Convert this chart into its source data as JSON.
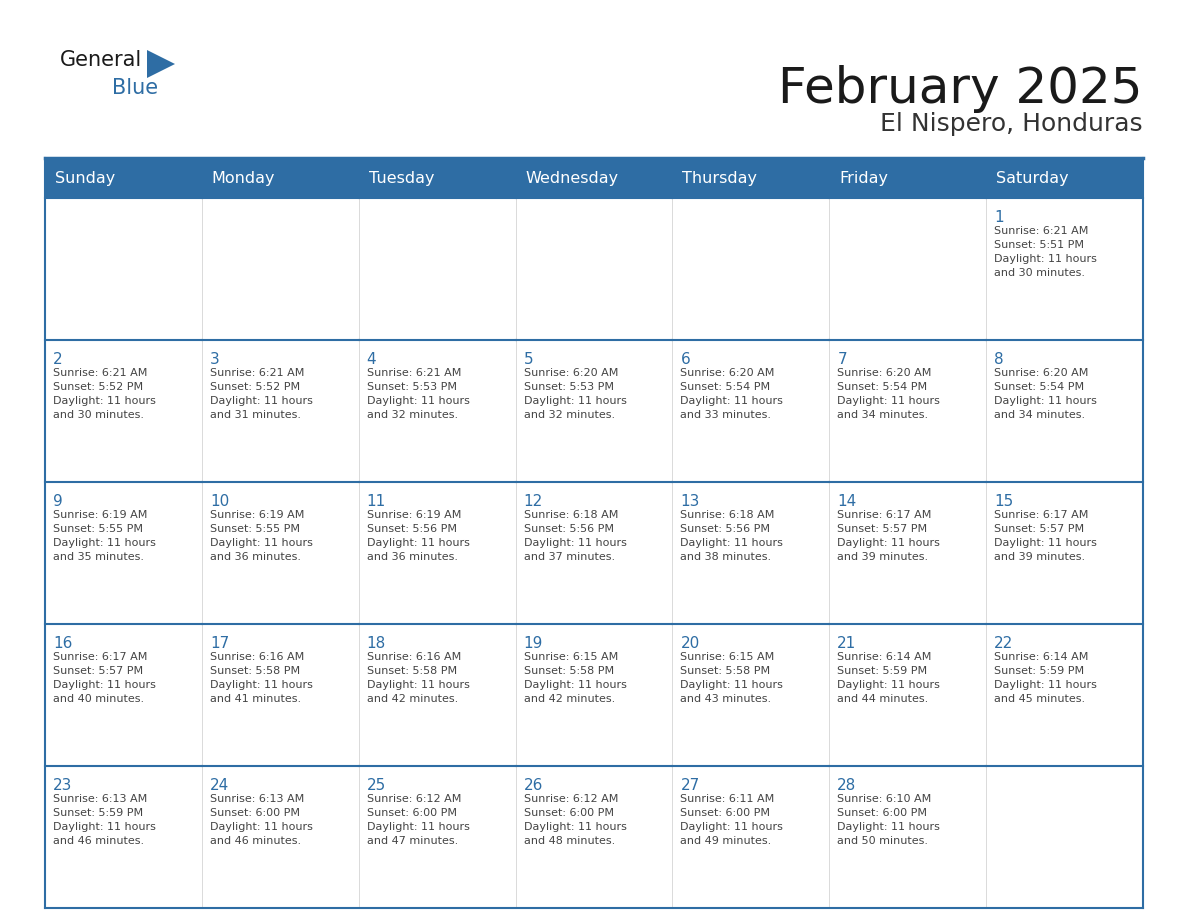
{
  "title": "February 2025",
  "subtitle": "El Nispero, Honduras",
  "header_bg": "#2E6DA4",
  "header_text": "#FFFFFF",
  "cell_bg": "#FFFFFF",
  "border_color": "#2E6DA4",
  "day_headers": [
    "Sunday",
    "Monday",
    "Tuesday",
    "Wednesday",
    "Thursday",
    "Friday",
    "Saturday"
  ],
  "title_color": "#1a1a1a",
  "subtitle_color": "#333333",
  "number_color": "#2E6DA4",
  "info_color": "#444444",
  "logo_text_color": "#1a1a1a",
  "logo_blue_color": "#2E6DA4",
  "calendar": [
    [
      null,
      null,
      null,
      null,
      null,
      null,
      {
        "day": 1,
        "sunrise": "6:21 AM",
        "sunset": "5:51 PM",
        "daylight": "11 hours\nand 30 minutes."
      }
    ],
    [
      {
        "day": 2,
        "sunrise": "6:21 AM",
        "sunset": "5:52 PM",
        "daylight": "11 hours\nand 30 minutes."
      },
      {
        "day": 3,
        "sunrise": "6:21 AM",
        "sunset": "5:52 PM",
        "daylight": "11 hours\nand 31 minutes."
      },
      {
        "day": 4,
        "sunrise": "6:21 AM",
        "sunset": "5:53 PM",
        "daylight": "11 hours\nand 32 minutes."
      },
      {
        "day": 5,
        "sunrise": "6:20 AM",
        "sunset": "5:53 PM",
        "daylight": "11 hours\nand 32 minutes."
      },
      {
        "day": 6,
        "sunrise": "6:20 AM",
        "sunset": "5:54 PM",
        "daylight": "11 hours\nand 33 minutes."
      },
      {
        "day": 7,
        "sunrise": "6:20 AM",
        "sunset": "5:54 PM",
        "daylight": "11 hours\nand 34 minutes."
      },
      {
        "day": 8,
        "sunrise": "6:20 AM",
        "sunset": "5:54 PM",
        "daylight": "11 hours\nand 34 minutes."
      }
    ],
    [
      {
        "day": 9,
        "sunrise": "6:19 AM",
        "sunset": "5:55 PM",
        "daylight": "11 hours\nand 35 minutes."
      },
      {
        "day": 10,
        "sunrise": "6:19 AM",
        "sunset": "5:55 PM",
        "daylight": "11 hours\nand 36 minutes."
      },
      {
        "day": 11,
        "sunrise": "6:19 AM",
        "sunset": "5:56 PM",
        "daylight": "11 hours\nand 36 minutes."
      },
      {
        "day": 12,
        "sunrise": "6:18 AM",
        "sunset": "5:56 PM",
        "daylight": "11 hours\nand 37 minutes."
      },
      {
        "day": 13,
        "sunrise": "6:18 AM",
        "sunset": "5:56 PM",
        "daylight": "11 hours\nand 38 minutes."
      },
      {
        "day": 14,
        "sunrise": "6:17 AM",
        "sunset": "5:57 PM",
        "daylight": "11 hours\nand 39 minutes."
      },
      {
        "day": 15,
        "sunrise": "6:17 AM",
        "sunset": "5:57 PM",
        "daylight": "11 hours\nand 39 minutes."
      }
    ],
    [
      {
        "day": 16,
        "sunrise": "6:17 AM",
        "sunset": "5:57 PM",
        "daylight": "11 hours\nand 40 minutes."
      },
      {
        "day": 17,
        "sunrise": "6:16 AM",
        "sunset": "5:58 PM",
        "daylight": "11 hours\nand 41 minutes."
      },
      {
        "day": 18,
        "sunrise": "6:16 AM",
        "sunset": "5:58 PM",
        "daylight": "11 hours\nand 42 minutes."
      },
      {
        "day": 19,
        "sunrise": "6:15 AM",
        "sunset": "5:58 PM",
        "daylight": "11 hours\nand 42 minutes."
      },
      {
        "day": 20,
        "sunrise": "6:15 AM",
        "sunset": "5:58 PM",
        "daylight": "11 hours\nand 43 minutes."
      },
      {
        "day": 21,
        "sunrise": "6:14 AM",
        "sunset": "5:59 PM",
        "daylight": "11 hours\nand 44 minutes."
      },
      {
        "day": 22,
        "sunrise": "6:14 AM",
        "sunset": "5:59 PM",
        "daylight": "11 hours\nand 45 minutes."
      }
    ],
    [
      {
        "day": 23,
        "sunrise": "6:13 AM",
        "sunset": "5:59 PM",
        "daylight": "11 hours\nand 46 minutes."
      },
      {
        "day": 24,
        "sunrise": "6:13 AM",
        "sunset": "6:00 PM",
        "daylight": "11 hours\nand 46 minutes."
      },
      {
        "day": 25,
        "sunrise": "6:12 AM",
        "sunset": "6:00 PM",
        "daylight": "11 hours\nand 47 minutes."
      },
      {
        "day": 26,
        "sunrise": "6:12 AM",
        "sunset": "6:00 PM",
        "daylight": "11 hours\nand 48 minutes."
      },
      {
        "day": 27,
        "sunrise": "6:11 AM",
        "sunset": "6:00 PM",
        "daylight": "11 hours\nand 49 minutes."
      },
      {
        "day": 28,
        "sunrise": "6:10 AM",
        "sunset": "6:00 PM",
        "daylight": "11 hours\nand 50 minutes."
      },
      null
    ]
  ]
}
